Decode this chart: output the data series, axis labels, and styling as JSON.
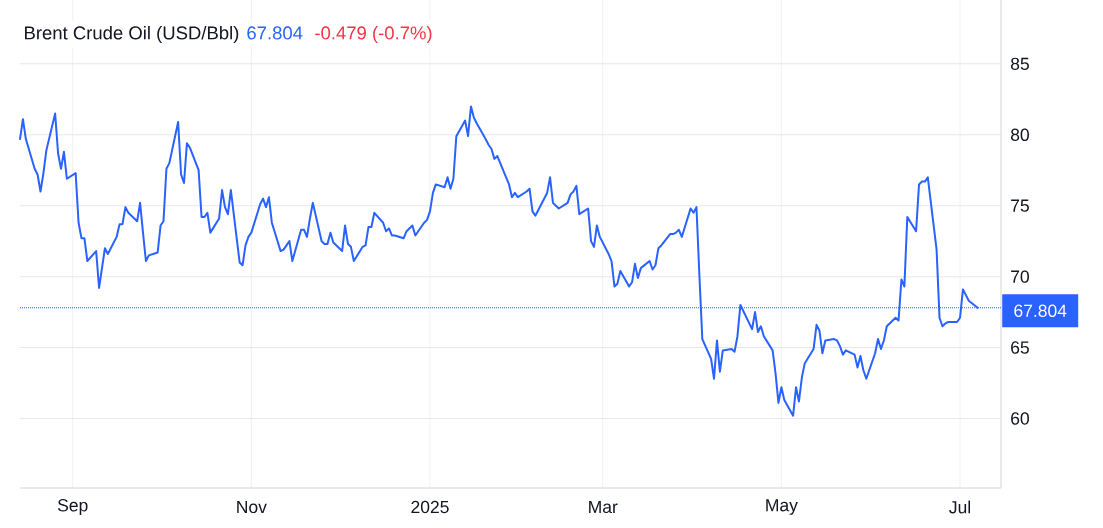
{
  "chart_data": {
    "type": "line",
    "title": "Brent Crude Oil (USD/Bbl)",
    "annotations": [
      "67.804",
      "-0.479 (-0.7%)"
    ],
    "color": "#2962ff",
    "marker": "none",
    "line_style": "solid",
    "grid": true,
    "xlim": [
      "2024-08-14",
      "2025-07-15"
    ],
    "xticks": [
      {
        "value": "2024-09-01",
        "label": "Sep"
      },
      {
        "value": "2024-11-01",
        "label": "Nov"
      },
      {
        "value": "2025-01-01",
        "label": "2025"
      },
      {
        "value": "2025-03-01",
        "label": "Mar"
      },
      {
        "value": "2025-05-01",
        "label": "May"
      },
      {
        "value": "2025-07-01",
        "label": "Jul"
      }
    ],
    "ylim": [
      55.1,
      89.5
    ],
    "yticks": [
      60,
      65,
      70,
      75,
      80,
      85
    ],
    "ref_lines": [
      {
        "axis": "y",
        "value": 67.804,
        "label": "67.804",
        "color": "#2962ff",
        "line_style": "dotted"
      }
    ],
    "x": [
      "2024-08-14",
      "2024-08-15",
      "2024-08-16",
      "2024-08-19",
      "2024-08-20",
      "2024-08-21",
      "2024-08-22",
      "2024-08-23",
      "2024-08-26",
      "2024-08-27",
      "2024-08-28",
      "2024-08-29",
      "2024-08-30",
      "2024-09-02",
      "2024-09-03",
      "2024-09-04",
      "2024-09-05",
      "2024-09-06",
      "2024-09-09",
      "2024-09-10",
      "2024-09-11",
      "2024-09-12",
      "2024-09-13",
      "2024-09-16",
      "2024-09-17",
      "2024-09-18",
      "2024-09-19",
      "2024-09-20",
      "2024-09-23",
      "2024-09-24",
      "2024-09-25",
      "2024-09-26",
      "2024-09-27",
      "2024-09-30",
      "2024-10-01",
      "2024-10-02",
      "2024-10-03",
      "2024-10-04",
      "2024-10-07",
      "2024-10-08",
      "2024-10-09",
      "2024-10-10",
      "2024-10-11",
      "2024-10-14",
      "2024-10-15",
      "2024-10-16",
      "2024-10-17",
      "2024-10-18",
      "2024-10-21",
      "2024-10-22",
      "2024-10-23",
      "2024-10-24",
      "2024-10-25",
      "2024-10-28",
      "2024-10-29",
      "2024-10-30",
      "2024-10-31",
      "2024-11-01",
      "2024-11-04",
      "2024-11-05",
      "2024-11-06",
      "2024-11-07",
      "2024-11-08",
      "2024-11-11",
      "2024-11-12",
      "2024-11-13",
      "2024-11-14",
      "2024-11-15",
      "2024-11-18",
      "2024-11-19",
      "2024-11-20",
      "2024-11-21",
      "2024-11-22",
      "2024-11-25",
      "2024-11-26",
      "2024-11-27",
      "2024-11-28",
      "2024-11-29",
      "2024-12-02",
      "2024-12-03",
      "2024-12-04",
      "2024-12-05",
      "2024-12-06",
      "2024-12-09",
      "2024-12-10",
      "2024-12-11",
      "2024-12-12",
      "2024-12-13",
      "2024-12-16",
      "2024-12-17",
      "2024-12-18",
      "2024-12-19",
      "2024-12-20",
      "2024-12-23",
      "2024-12-24",
      "2024-12-26",
      "2024-12-27",
      "2024-12-30",
      "2024-12-31",
      "2025-01-01",
      "2025-01-02",
      "2025-01-03",
      "2025-01-06",
      "2025-01-07",
      "2025-01-08",
      "2025-01-09",
      "2025-01-10",
      "2025-01-13",
      "2025-01-14",
      "2025-01-15",
      "2025-01-16",
      "2025-01-17",
      "2025-01-20",
      "2025-01-21",
      "2025-01-22",
      "2025-01-23",
      "2025-01-24",
      "2025-01-27",
      "2025-01-28",
      "2025-01-29",
      "2025-01-30",
      "2025-01-31",
      "2025-02-03",
      "2025-02-04",
      "2025-02-05",
      "2025-02-06",
      "2025-02-07",
      "2025-02-10",
      "2025-02-11",
      "2025-02-12",
      "2025-02-13",
      "2025-02-14",
      "2025-02-17",
      "2025-02-18",
      "2025-02-19",
      "2025-02-20",
      "2025-02-21",
      "2025-02-24",
      "2025-02-25",
      "2025-02-26",
      "2025-02-27",
      "2025-02-28",
      "2025-03-03",
      "2025-03-04",
      "2025-03-05",
      "2025-03-06",
      "2025-03-07",
      "2025-03-10",
      "2025-03-11",
      "2025-03-12",
      "2025-03-13",
      "2025-03-14",
      "2025-03-17",
      "2025-03-18",
      "2025-03-19",
      "2025-03-20",
      "2025-03-21",
      "2025-03-24",
      "2025-03-25",
      "2025-03-26",
      "2025-03-27",
      "2025-03-28",
      "2025-03-31",
      "2025-04-01",
      "2025-04-02",
      "2025-04-03",
      "2025-04-04",
      "2025-04-07",
      "2025-04-08",
      "2025-04-09",
      "2025-04-10",
      "2025-04-11",
      "2025-04-14",
      "2025-04-15",
      "2025-04-16",
      "2025-04-17",
      "2025-04-21",
      "2025-04-22",
      "2025-04-23",
      "2025-04-24",
      "2025-04-25",
      "2025-04-28",
      "2025-04-29",
      "2025-04-30",
      "2025-05-01",
      "2025-05-02",
      "2025-05-05",
      "2025-05-06",
      "2025-05-07",
      "2025-05-08",
      "2025-05-09",
      "2025-05-12",
      "2025-05-13",
      "2025-05-14",
      "2025-05-15",
      "2025-05-16",
      "2025-05-19",
      "2025-05-20",
      "2025-05-21",
      "2025-05-22",
      "2025-05-23",
      "2025-05-26",
      "2025-05-27",
      "2025-05-28",
      "2025-05-29",
      "2025-05-30",
      "2025-06-02",
      "2025-06-03",
      "2025-06-04",
      "2025-06-05",
      "2025-06-06",
      "2025-06-09",
      "2025-06-10",
      "2025-06-11",
      "2025-06-12",
      "2025-06-13",
      "2025-06-16",
      "2025-06-17",
      "2025-06-18",
      "2025-06-19",
      "2025-06-20",
      "2025-06-23",
      "2025-06-24",
      "2025-06-25",
      "2025-06-26",
      "2025-06-27",
      "2025-06-30",
      "2025-07-01",
      "2025-07-02",
      "2025-07-03",
      "2025-07-04",
      "2025-07-07"
    ],
    "values": [
      79.7,
      81.1,
      79.7,
      77.6,
      77.2,
      76.0,
      77.3,
      78.9,
      81.5,
      78.7,
      77.6,
      78.8,
      76.9,
      77.3,
      73.8,
      72.7,
      72.7,
      71.1,
      71.8,
      69.2,
      70.6,
      72.0,
      71.6,
      72.8,
      73.7,
      73.7,
      74.9,
      74.5,
      73.9,
      75.2,
      73.1,
      71.1,
      71.5,
      71.7,
      73.6,
      73.9,
      77.6,
      78.0,
      80.9,
      77.2,
      76.6,
      79.4,
      79.1,
      77.5,
      74.2,
      74.2,
      74.5,
      73.1,
      74.1,
      76.1,
      74.9,
      74.4,
      76.1,
      71.0,
      70.8,
      72.2,
      72.8,
      73.1,
      75.1,
      75.5,
      74.9,
      75.6,
      73.8,
      71.8,
      71.9,
      72.2,
      72.5,
      71.1,
      73.3,
      73.3,
      72.8,
      74.1,
      75.2,
      72.5,
      72.3,
      72.3,
      73.1,
      72.4,
      71.8,
      73.6,
      72.3,
      72.1,
      71.1,
      72.1,
      72.2,
      73.5,
      73.5,
      74.5,
      73.8,
      73.2,
      73.4,
      72.9,
      72.9,
      72.7,
      73.2,
      73.6,
      72.9,
      73.8,
      74.0,
      74.6,
      75.9,
      76.5,
      76.3,
      77.0,
      76.2,
      76.9,
      79.9,
      81.0,
      79.9,
      82.0,
      81.2,
      80.8,
      79.7,
      79.3,
      79.0,
      78.3,
      78.5,
      77.0,
      76.5,
      75.6,
      75.9,
      75.6,
      76.0,
      76.2,
      74.6,
      74.3,
      74.7,
      75.9,
      77.0,
      75.2,
      75.0,
      74.8,
      75.2,
      75.8,
      76.0,
      76.4,
      74.4,
      74.8,
      72.5,
      72.1,
      73.6,
      72.8,
      71.6,
      71.1,
      69.3,
      69.5,
      70.4,
      69.3,
      69.6,
      70.9,
      69.9,
      70.6,
      71.1,
      70.5,
      70.8,
      72.0,
      72.2,
      73.0,
      73.0,
      73.1,
      73.3,
      72.8,
      74.8,
      74.5,
      74.9,
      70.1,
      65.6,
      64.2,
      62.8,
      65.5,
      63.3,
      64.8,
      64.9,
      64.7,
      65.8,
      68.0,
      66.3,
      67.5,
      66.1,
      66.5,
      65.8,
      64.8,
      63.2,
      61.1,
      62.2,
      61.3,
      60.2,
      62.2,
      61.2,
      62.9,
      63.9,
      64.9,
      66.6,
      66.2,
      64.6,
      65.5,
      65.6,
      65.5,
      65.1,
      64.5,
      64.8,
      64.5,
      63.6,
      64.4,
      63.4,
      62.8,
      64.6,
      65.6,
      64.9,
      65.5,
      66.5,
      67.1,
      66.9,
      69.8,
      69.3,
      74.2,
      73.2,
      76.5,
      76.7,
      76.7,
      77.0,
      71.9,
      67.1,
      66.5,
      66.7,
      66.8,
      66.8,
      67.1,
      69.1,
      68.7,
      68.3,
      67.8
    ]
  }
}
